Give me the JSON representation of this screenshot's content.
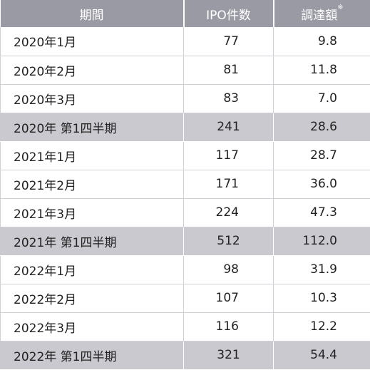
{
  "header": {
    "period": "期間",
    "ipo_count": "IPO件数",
    "amount": "調達額",
    "amount_note_mark": "※"
  },
  "rows": [
    {
      "period": "2020年1月",
      "ipo": "77",
      "amount": "9.8",
      "subtotal": false
    },
    {
      "period": "2020年2月",
      "ipo": "81",
      "amount": "11.8",
      "subtotal": false
    },
    {
      "period": "2020年3月",
      "ipo": "83",
      "amount": "7.0",
      "subtotal": false
    },
    {
      "period": "2020年 第1四半期",
      "ipo": "241",
      "amount": "28.6",
      "subtotal": true
    },
    {
      "period": "2021年1月",
      "ipo": "117",
      "amount": "28.7",
      "subtotal": false
    },
    {
      "period": "2021年2月",
      "ipo": "171",
      "amount": "36.0",
      "subtotal": false
    },
    {
      "period": "2021年3月",
      "ipo": "224",
      "amount": "47.3",
      "subtotal": false
    },
    {
      "period": "2021年 第1四半期",
      "ipo": "512",
      "amount": "112.0",
      "subtotal": true
    },
    {
      "period": "2022年1月",
      "ipo": "98",
      "amount": "31.9",
      "subtotal": false
    },
    {
      "period": "2022年2月",
      "ipo": "107",
      "amount": "10.3",
      "subtotal": false
    },
    {
      "period": "2022年3月",
      "ipo": "116",
      "amount": "12.2",
      "subtotal": false
    },
    {
      "period": "2022年 第1四半期",
      "ipo": "321",
      "amount": "54.4",
      "subtotal": true
    }
  ]
}
